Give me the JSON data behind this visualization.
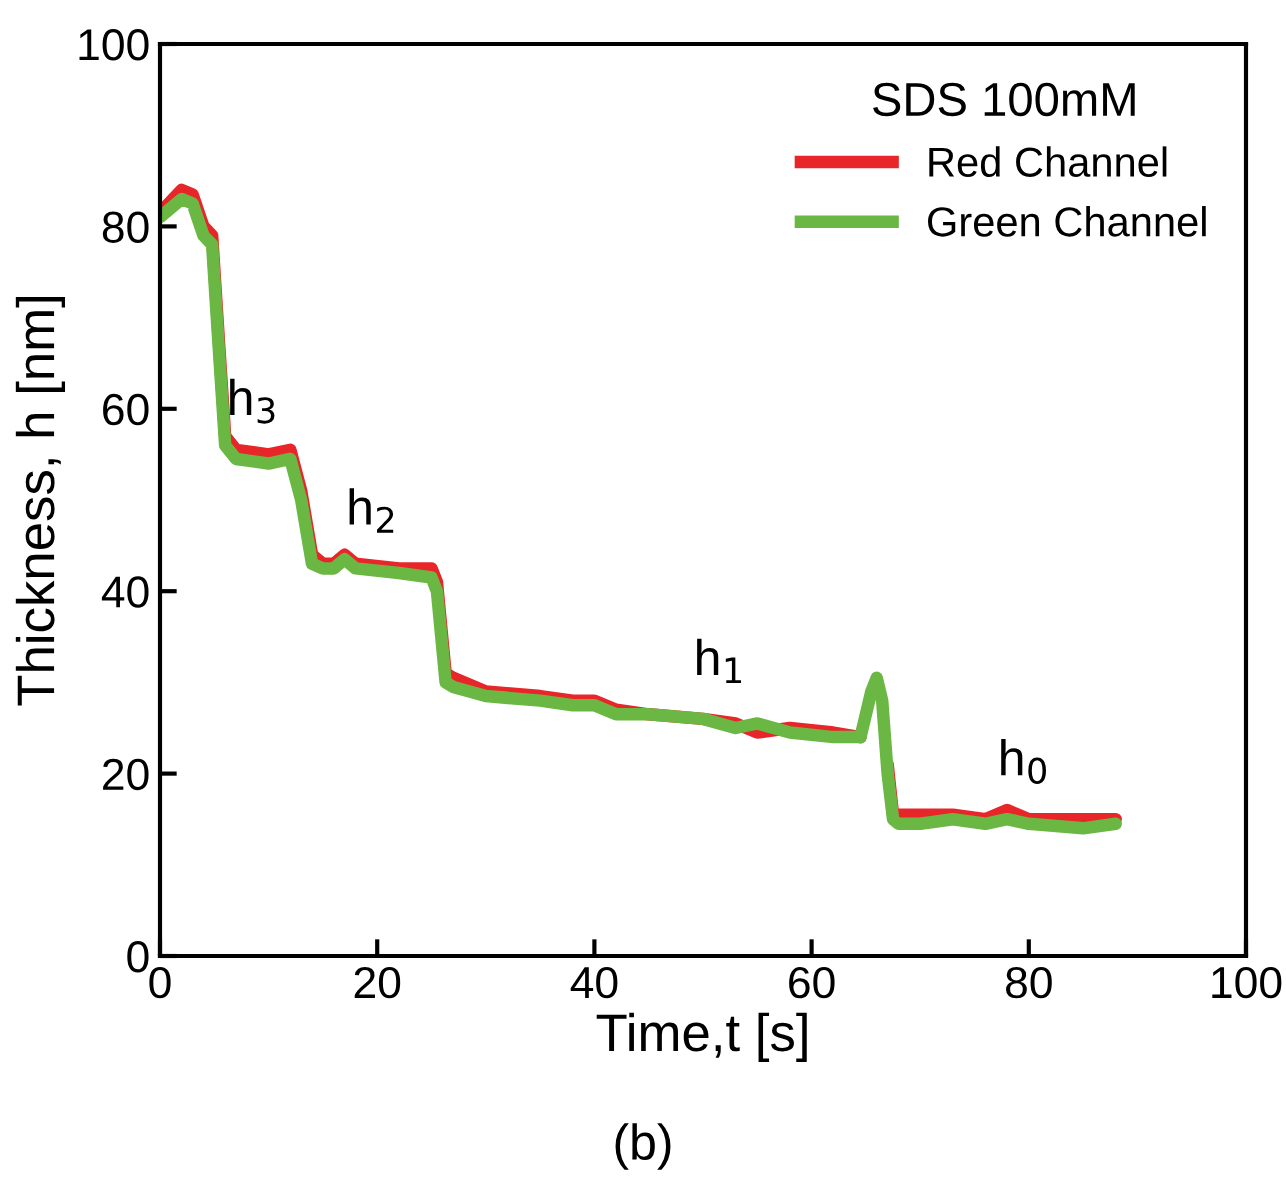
{
  "chart_data": {
    "type": "line",
    "xlabel": "Time,t [s]",
    "ylabel": "Thickness, h [nm]",
    "legend_title": "SDS 100mM",
    "x": [
      0,
      2,
      3,
      4,
      4.8,
      5.5,
      6,
      7,
      10,
      12,
      13,
      14,
      15,
      16,
      17,
      18,
      22,
      25,
      25.5,
      26.3,
      27,
      30,
      35,
      38,
      40,
      42,
      45,
      50,
      53,
      55,
      58,
      62,
      64.5,
      65.5,
      66,
      66.5,
      67,
      67.5,
      68,
      70,
      73,
      76,
      78,
      80,
      85,
      88
    ],
    "series": [
      {
        "name": "Red Channel",
        "color": "#e8262a",
        "values": [
          81.5,
          84,
          83.5,
          80,
          79,
          66,
          57,
          55.5,
          55,
          55.5,
          51,
          44,
          43,
          43,
          44,
          43,
          42.5,
          42.5,
          41,
          31,
          30.5,
          29,
          28.5,
          28,
          28,
          27,
          26.5,
          26,
          25.5,
          24.5,
          25,
          24.5,
          24,
          null,
          null,
          null,
          21,
          15.5,
          15.5,
          15.5,
          15.5,
          15,
          16,
          15,
          15,
          15
        ]
      },
      {
        "name": "Green Channel",
        "color": "#6ab843",
        "values": [
          81,
          83,
          82.5,
          79,
          78,
          65,
          56,
          54.5,
          54,
          54.5,
          50,
          43,
          42.5,
          42.5,
          43.5,
          42.5,
          42,
          41.5,
          40,
          30,
          29.5,
          28.5,
          28,
          27.5,
          27.5,
          26.5,
          26.5,
          26,
          25,
          25.5,
          24.5,
          24,
          24,
          29,
          30.5,
          28,
          20,
          15,
          14.5,
          14.5,
          15,
          14.5,
          15,
          14.5,
          14,
          14.5
        ]
      }
    ],
    "xlim": [
      0,
      100
    ],
    "xticks": [
      0,
      20,
      40,
      60,
      80,
      100
    ],
    "ylim": [
      0,
      100
    ],
    "yticks": [
      0,
      20,
      40,
      60,
      80,
      100
    ],
    "grid": false,
    "legend": "top right",
    "marker": "none",
    "line_style": "solid",
    "annotations": [
      {
        "text": "h$_{3}$",
        "x": 7,
        "y": 54.5
      },
      {
        "text": "h$_{2}$",
        "x": 18,
        "y": 42.5
      },
      {
        "text": "h$_{1}$",
        "x": 50,
        "y": 26
      },
      {
        "text": "h$_{0}$",
        "x": 78,
        "y": 15
      },
      "(b)"
    ]
  }
}
